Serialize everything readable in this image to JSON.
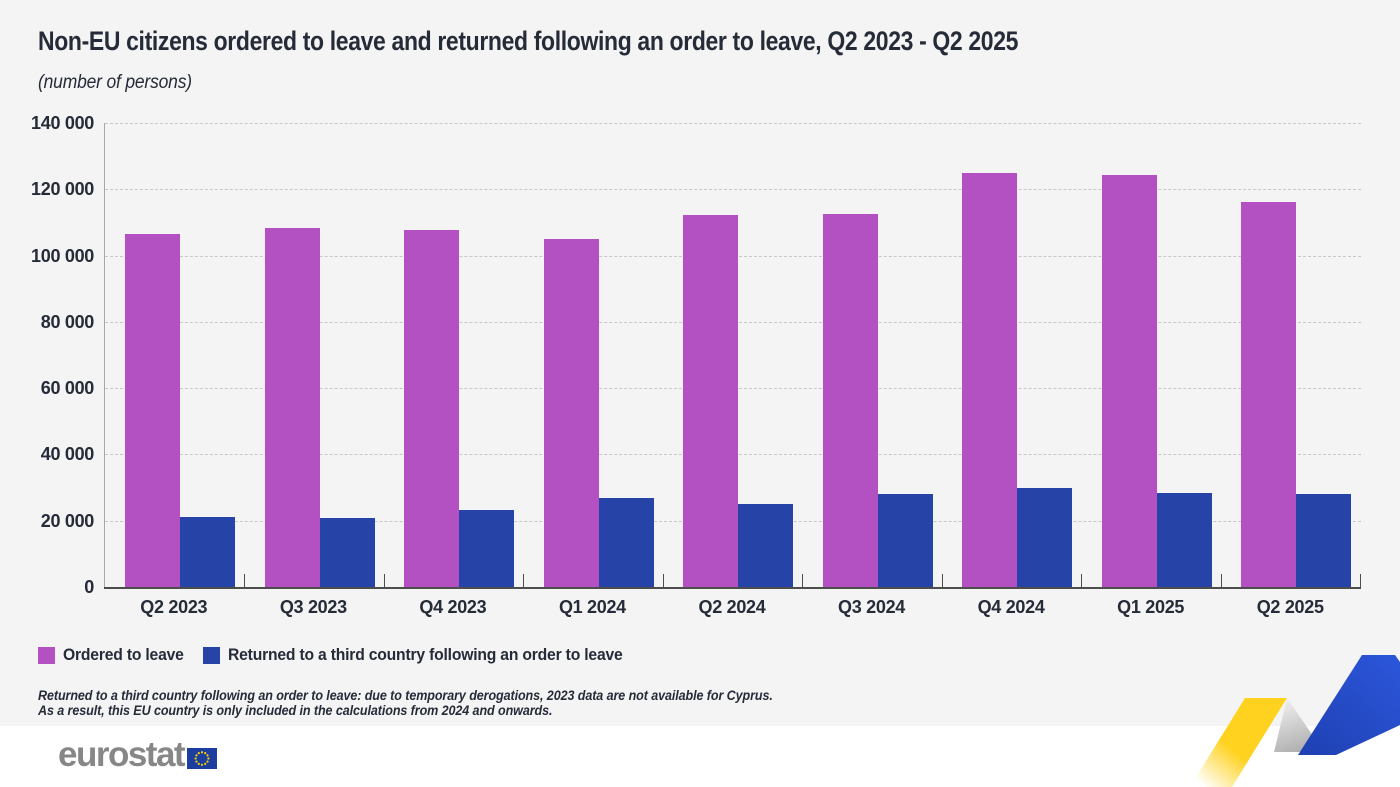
{
  "header": {
    "title": "Non-EU citizens ordered to leave and returned following an order to leave, Q2 2023 - Q2 2025",
    "subtitle": "(number of persons)"
  },
  "chart_data": {
    "type": "bar",
    "categories": [
      "Q2 2023",
      "Q3 2023",
      "Q4 2023",
      "Q1 2024",
      "Q2 2024",
      "Q3 2024",
      "Q4 2024",
      "Q1 2025",
      "Q2 2025"
    ],
    "series": [
      {
        "name": "Ordered to leave",
        "color": "#b351c2",
        "values": [
          106500,
          108200,
          107600,
          105000,
          112300,
          112400,
          124900,
          124200,
          116300
        ]
      },
      {
        "name": "Returned to a third country following an order to leave",
        "color": "#2644a7",
        "values": [
          21000,
          20700,
          23200,
          27000,
          25000,
          28200,
          30000,
          28300,
          28100
        ]
      }
    ],
    "title": "Non-EU citizens ordered to leave and returned following an order to leave, Q2 2023 - Q2 2025",
    "xlabel": "",
    "ylabel": "number of persons",
    "ylim": [
      0,
      140000
    ],
    "ytick_step": 20000,
    "ytick_labels": [
      "0",
      "20 000",
      "40 000",
      "60 000",
      "80 000",
      "100 000",
      "120 000",
      "140 000"
    ],
    "grid": "horizontal-dashed",
    "legend_position": "bottom-left"
  },
  "footnote": {
    "line1": "Returned to a third country following an order to leave: due to temporary derogations, 2023 data are not available for Cyprus.",
    "line2": "As a result, this EU country is only included in the calculations from 2024 and onwards."
  },
  "footer": {
    "logo_text": "eurostat"
  },
  "colors": {
    "background": "#f4f4f4",
    "bottom_band": "#ffffff",
    "text": "#262b38",
    "ordered_bar": "#b351c2",
    "returned_bar": "#2644a7",
    "logo_gray": "#878787",
    "ribbon_yellow": "#ffd21f",
    "ribbon_blue": "#2a51cd",
    "eu_flag_blue": "#1c3e9e",
    "eu_star_yellow": "#ffcc00"
  }
}
